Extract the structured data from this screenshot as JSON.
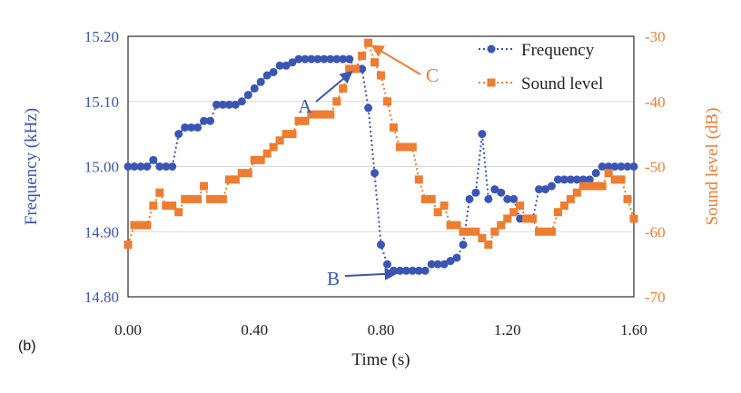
{
  "panel_label": "(b)",
  "colors": {
    "frequency": "#3a55b4",
    "sound": "#ed7d31",
    "grid": "#d9d9d9",
    "frame": "#000000"
  },
  "chart_data": {
    "type": "line",
    "xlabel": "Time (s)",
    "ylabel_left": "Frequency (kHz)",
    "ylabel_right": "Sound level (dB)",
    "xlim": [
      0,
      1.6
    ],
    "ylim_left": [
      14.8,
      15.2
    ],
    "ylim_right": [
      -70,
      -30
    ],
    "x_ticks": [
      "0.00",
      "0.40",
      "0.80",
      "1.20",
      "1.60"
    ],
    "y_left_ticks": [
      "15.20",
      "15.10",
      "15.00",
      "14.90",
      "14.80"
    ],
    "y_right_ticks": [
      "-30",
      "-40",
      "-50",
      "-60",
      "-70"
    ],
    "grid": "horizontal",
    "legend_position": "top-right",
    "series": [
      {
        "name": "Frequency",
        "axis": "left",
        "marker": "circle",
        "line": "dotted",
        "x": [
          0.0,
          0.02,
          0.04,
          0.06,
          0.08,
          0.1,
          0.12,
          0.14,
          0.16,
          0.18,
          0.2,
          0.22,
          0.24,
          0.26,
          0.28,
          0.3,
          0.32,
          0.34,
          0.36,
          0.38,
          0.4,
          0.42,
          0.44,
          0.46,
          0.48,
          0.5,
          0.52,
          0.54,
          0.56,
          0.58,
          0.6,
          0.62,
          0.64,
          0.66,
          0.68,
          0.7,
          0.72,
          0.74,
          0.76,
          0.78,
          0.8,
          0.82,
          0.84,
          0.86,
          0.88,
          0.9,
          0.92,
          0.94,
          0.96,
          0.98,
          1.0,
          1.02,
          1.04,
          1.06,
          1.08,
          1.1,
          1.12,
          1.14,
          1.16,
          1.18,
          1.2,
          1.22,
          1.24,
          1.26,
          1.28,
          1.3,
          1.32,
          1.34,
          1.36,
          1.38,
          1.4,
          1.42,
          1.44,
          1.46,
          1.48,
          1.5,
          1.52,
          1.54,
          1.56,
          1.58,
          1.6
        ],
        "values": [
          15.0,
          15.0,
          15.0,
          15.0,
          15.01,
          15.0,
          15.0,
          15.0,
          15.05,
          15.06,
          15.06,
          15.06,
          15.07,
          15.07,
          15.095,
          15.095,
          15.095,
          15.095,
          15.1,
          15.11,
          15.12,
          15.13,
          15.14,
          15.145,
          15.155,
          15.155,
          15.16,
          15.165,
          15.165,
          15.165,
          15.165,
          15.165,
          15.165,
          15.165,
          15.165,
          15.165,
          15.15,
          15.15,
          15.09,
          14.99,
          14.88,
          14.85,
          14.84,
          14.84,
          14.84,
          14.84,
          14.84,
          14.84,
          14.85,
          14.85,
          14.85,
          14.855,
          14.86,
          14.88,
          14.95,
          14.96,
          15.05,
          14.95,
          14.965,
          14.96,
          14.95,
          14.95,
          14.92,
          14.92,
          14.92,
          14.965,
          14.965,
          14.97,
          14.98,
          14.98,
          14.98,
          14.98,
          14.98,
          14.98,
          14.99,
          15.0,
          15.0,
          15.0,
          15.0,
          15.0,
          15.0
        ]
      },
      {
        "name": "Sound level",
        "axis": "right",
        "marker": "square",
        "line": "dotted",
        "x": [
          0.0,
          0.02,
          0.04,
          0.06,
          0.08,
          0.1,
          0.12,
          0.14,
          0.16,
          0.18,
          0.2,
          0.22,
          0.24,
          0.26,
          0.28,
          0.3,
          0.32,
          0.34,
          0.36,
          0.38,
          0.4,
          0.42,
          0.44,
          0.46,
          0.48,
          0.5,
          0.52,
          0.54,
          0.56,
          0.58,
          0.6,
          0.62,
          0.64,
          0.66,
          0.68,
          0.7,
          0.72,
          0.74,
          0.76,
          0.78,
          0.8,
          0.82,
          0.84,
          0.86,
          0.88,
          0.9,
          0.92,
          0.94,
          0.96,
          0.98,
          1.0,
          1.02,
          1.04,
          1.06,
          1.08,
          1.1,
          1.12,
          1.14,
          1.16,
          1.18,
          1.2,
          1.22,
          1.24,
          1.26,
          1.28,
          1.3,
          1.32,
          1.34,
          1.36,
          1.38,
          1.4,
          1.42,
          1.44,
          1.46,
          1.48,
          1.5,
          1.52,
          1.54,
          1.56,
          1.58,
          1.6
        ],
        "values": [
          -62,
          -59,
          -59,
          -59,
          -56,
          -54,
          -56,
          -56,
          -57,
          -55,
          -55,
          -55,
          -53,
          -55,
          -55,
          -55,
          -52,
          -52,
          -51,
          -51,
          -49,
          -49,
          -48,
          -47,
          -46,
          -45,
          -45,
          -43,
          -43,
          -42,
          -42,
          -42,
          -42,
          -40,
          -38,
          -35,
          -35,
          -33,
          -31,
          -34,
          -36,
          -40,
          -44,
          -47,
          -47,
          -47,
          -52,
          -55,
          -55,
          -57,
          -56,
          -59,
          -59,
          -60,
          -60,
          -60,
          -61,
          -62,
          -60,
          -59,
          -58,
          -57,
          -56,
          -58,
          -58,
          -60,
          -60,
          -60,
          -57,
          -56,
          -55,
          -54,
          -53,
          -53,
          -53,
          -53,
          -51,
          -52,
          -52,
          -55,
          -58
        ]
      }
    ],
    "annotations": [
      {
        "label": "A",
        "series": "Frequency",
        "x": 0.72,
        "y": 15.15
      },
      {
        "label": "B",
        "series": "Frequency",
        "x": 0.86,
        "y": 14.84
      },
      {
        "label": "C",
        "series": "Sound level",
        "x": 0.76,
        "y": -31
      }
    ]
  }
}
